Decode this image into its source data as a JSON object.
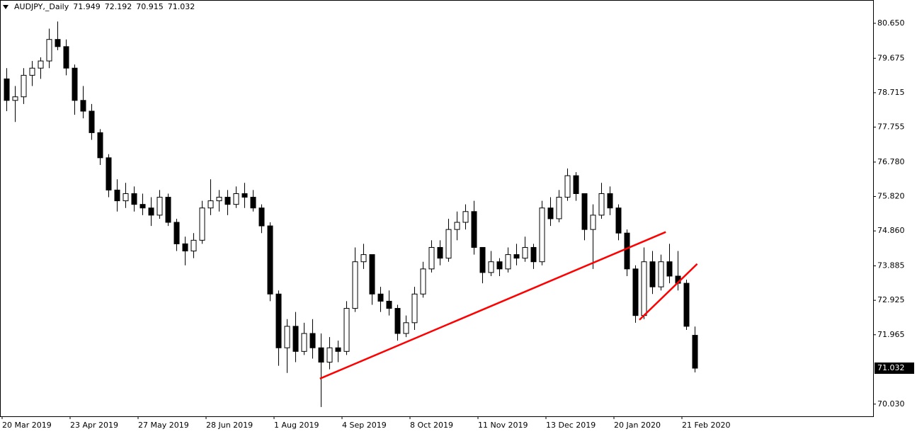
{
  "chart_data": {
    "type": "candlestick",
    "title": "AUDJPY,_Daily",
    "categories": [
      "20 Mar 2019",
      null,
      null,
      null,
      null,
      null,
      null,
      null,
      "23 Apr 2019",
      null,
      null,
      null,
      null,
      null,
      null,
      null,
      "27 May 2019",
      null,
      null,
      null,
      null,
      null,
      null,
      null,
      "28 Jun 2019",
      null,
      null,
      null,
      null,
      null,
      null,
      null,
      "1 Aug 2019",
      null,
      null,
      null,
      null,
      null,
      null,
      null,
      "4 Sep 2019",
      null,
      null,
      null,
      null,
      null,
      null,
      null,
      "8 Oct 2019",
      null,
      null,
      null,
      null,
      null,
      null,
      null,
      "11 Nov 2019",
      null,
      null,
      null,
      null,
      null,
      null,
      null,
      "13 Dec 2019",
      null,
      null,
      null,
      null,
      null,
      null,
      null,
      "20 Jan 2020",
      null,
      null,
      null,
      null,
      null,
      null,
      null,
      "21 Feb 2020",
      null
    ],
    "open": [
      79.1,
      78.5,
      78.6,
      79.2,
      79.4,
      79.6,
      80.2,
      80.0,
      79.4,
      78.5,
      78.2,
      77.6,
      76.9,
      76.0,
      75.7,
      75.9,
      75.6,
      75.5,
      75.3,
      75.8,
      75.1,
      74.5,
      74.3,
      74.6,
      75.5,
      75.7,
      75.8,
      75.6,
      75.9,
      75.8,
      75.5,
      75.0,
      73.1,
      71.6,
      72.2,
      71.5,
      72.0,
      71.6,
      71.2,
      71.6,
      71.5,
      72.7,
      74.0,
      74.2,
      73.1,
      72.9,
      72.7,
      72.0,
      72.3,
      73.1,
      73.8,
      74.4,
      74.1,
      74.9,
      75.1,
      75.4,
      74.4,
      73.7,
      74.0,
      73.8,
      74.2,
      74.1,
      74.4,
      74.0,
      75.5,
      75.2,
      75.8,
      76.4,
      75.9,
      74.9,
      75.3,
      75.9,
      75.5,
      74.8,
      73.8,
      72.5,
      74.0,
      73.3,
      74.0,
      73.6,
      73.4,
      71.949
    ],
    "high": [
      79.4,
      78.9,
      79.4,
      79.6,
      79.7,
      80.5,
      80.7,
      80.2,
      79.5,
      78.9,
      78.4,
      77.7,
      77.0,
      76.3,
      76.2,
      76.1,
      75.9,
      75.8,
      76.0,
      75.9,
      75.2,
      74.7,
      74.8,
      75.7,
      76.3,
      76.0,
      76.0,
      76.1,
      76.2,
      76.0,
      75.6,
      75.1,
      73.2,
      72.4,
      72.6,
      72.3,
      72.4,
      72.0,
      71.9,
      71.8,
      72.9,
      74.4,
      74.5,
      74.2,
      73.3,
      73.2,
      72.8,
      72.5,
      73.3,
      74.0,
      74.6,
      74.6,
      75.2,
      75.4,
      75.6,
      75.7,
      74.4,
      74.3,
      74.1,
      74.4,
      74.5,
      74.7,
      74.5,
      75.7,
      75.8,
      76.0,
      76.6,
      76.5,
      75.9,
      75.6,
      76.2,
      76.1,
      75.6,
      74.9,
      73.9,
      74.4,
      74.3,
      74.2,
      74.5,
      74.3,
      73.5,
      72.192
    ],
    "low": [
      78.2,
      77.9,
      78.4,
      78.9,
      79.1,
      79.4,
      79.9,
      79.2,
      78.1,
      78.0,
      77.4,
      76.7,
      75.8,
      75.4,
      75.5,
      75.4,
      75.3,
      75.0,
      75.2,
      75.0,
      74.3,
      73.9,
      74.1,
      74.5,
      75.3,
      75.4,
      75.3,
      75.5,
      75.5,
      75.4,
      74.8,
      72.9,
      71.1,
      70.9,
      71.2,
      71.4,
      71.3,
      69.95,
      71.0,
      71.2,
      71.4,
      72.6,
      73.8,
      72.8,
      72.6,
      72.5,
      71.8,
      71.9,
      72.1,
      73.0,
      73.7,
      73.9,
      74.0,
      74.6,
      74.9,
      74.2,
      73.4,
      73.6,
      73.6,
      73.7,
      73.9,
      74.0,
      73.8,
      73.9,
      75.0,
      75.1,
      75.7,
      75.7,
      74.6,
      73.8,
      75.2,
      75.3,
      74.6,
      73.6,
      72.3,
      72.4,
      73.1,
      73.2,
      73.4,
      73.2,
      72.1,
      70.915
    ],
    "close": [
      78.5,
      78.6,
      79.2,
      79.4,
      79.6,
      80.2,
      80.0,
      79.4,
      78.5,
      78.2,
      77.6,
      76.9,
      76.0,
      75.7,
      75.9,
      75.6,
      75.5,
      75.3,
      75.8,
      75.1,
      74.5,
      74.3,
      74.6,
      75.5,
      75.7,
      75.8,
      75.6,
      75.9,
      75.8,
      75.5,
      75.0,
      73.1,
      71.6,
      72.2,
      71.5,
      72.0,
      71.6,
      71.2,
      71.6,
      71.5,
      72.7,
      74.0,
      74.2,
      73.1,
      72.9,
      72.7,
      72.0,
      72.3,
      73.1,
      73.8,
      74.4,
      74.1,
      74.9,
      75.1,
      75.4,
      74.4,
      73.7,
      74.0,
      73.8,
      74.2,
      74.1,
      74.4,
      74.0,
      75.5,
      75.2,
      75.8,
      76.4,
      75.9,
      74.9,
      75.3,
      75.9,
      75.5,
      74.8,
      73.8,
      72.5,
      74.0,
      73.3,
      74.0,
      73.6,
      73.4,
      72.2,
      71.032
    ],
    "bull_color": "#ffffff",
    "bear_color": "#000000",
    "outline_color": "#000000",
    "ylim": [
      69.69,
      81.3
    ],
    "yticks": [
      {
        "value": 80.65,
        "label": "80.650"
      },
      79.675,
      78.715,
      77.755,
      {
        "value": 76.78,
        "label": "76.780"
      },
      {
        "value": 75.82,
        "label": "75.820"
      },
      {
        "value": 74.86,
        "label": "74.860"
      },
      73.885,
      72.925,
      71.965,
      {
        "value": 70.03,
        "label": "70.030"
      }
    ],
    "trendlines": [
      {
        "x": [
          36.9,
          77.6
        ],
        "y": [
          70.74,
          74.83
        ],
        "color": "#ff0000"
      },
      {
        "x": [
          74.5,
          81.3
        ],
        "y": [
          72.38,
          73.94
        ],
        "color": "#ff0000"
      }
    ]
  }
}
